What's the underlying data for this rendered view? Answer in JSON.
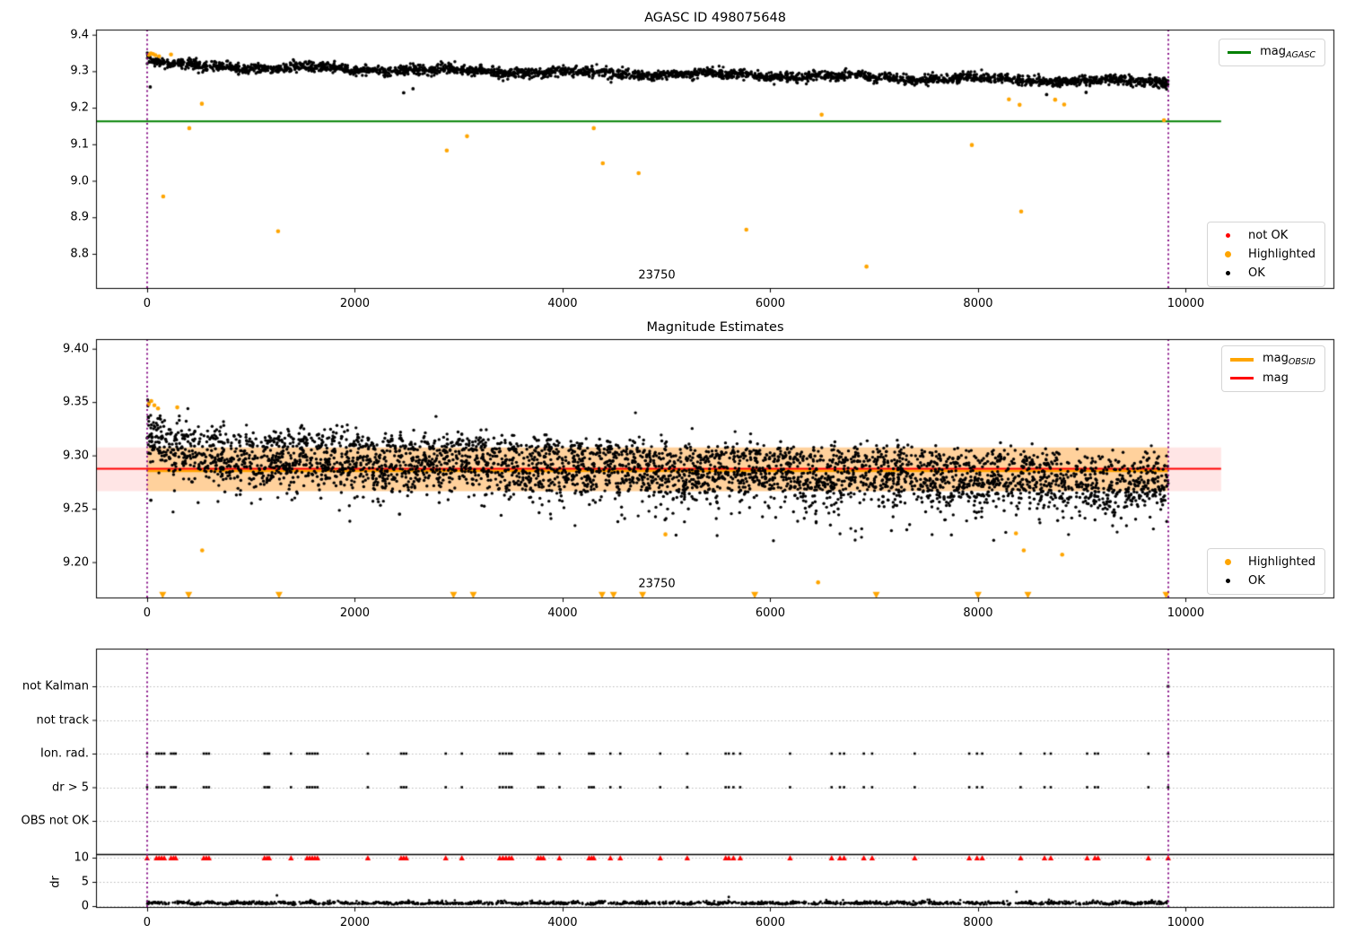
{
  "figure": {
    "bg": "#ffffff"
  },
  "colors": {
    "ok": "#000000",
    "highlighted": "#ffa500",
    "not_ok": "#ff0000",
    "mag_agasc_line": "#008000",
    "mag_line": "#ff0000",
    "mag_obsid_line": "#ffa500",
    "mag_band": "rgba(255,0,0,0.10)",
    "mag_obsid_band": "rgba(255,165,0,0.32)",
    "window_line": "#800080",
    "grid": "#b8b8b8",
    "frame": "#000000"
  },
  "chart_data": [
    {
      "type": "scatter",
      "title": "AGASC ID 498075648",
      "xlim": [
        -492,
        11430
      ],
      "ylim": [
        8.704,
        9.414
      ],
      "xtick_values": [
        0,
        2000,
        4000,
        6000,
        8000,
        10000
      ],
      "xtick_labels": [
        "0",
        "2000",
        "4000",
        "6000",
        "8000",
        "10000"
      ],
      "ytick_values": [
        9.4,
        9.3,
        9.2,
        9.1,
        9.0,
        8.9,
        8.8
      ],
      "ytick_labels": [
        "9.4",
        "9.3",
        "9.2",
        "9.1",
        "9.0",
        "8.9",
        "8.8"
      ],
      "legend_lines": [
        {
          "label": "mag",
          "sub": "AGASC",
          "color": "#008000"
        }
      ],
      "legend_markers": [
        {
          "label": "not OK",
          "color": "#ff0000"
        },
        {
          "label": "Highlighted",
          "color": "#ffa500"
        },
        {
          "label": "OK",
          "color": "#000000"
        }
      ],
      "mag_agasc_value": 9.163,
      "hline_x_span": [
        -492,
        10340
      ],
      "window_x": [
        0,
        9830
      ],
      "ok_series": {
        "n": 3000,
        "seed": 42,
        "x_min": 0,
        "x_max": 9830,
        "y_start": 9.3155,
        "y_slope_per_x": 4.6e-06,
        "noise": 0.0066,
        "transient_amp": 0.02,
        "transient_tau": 110
      },
      "ok_outliers": [
        [
          30,
          9.257
        ],
        [
          2470,
          9.241
        ],
        [
          2560,
          9.252
        ],
        [
          8660,
          9.236
        ],
        [
          9040,
          9.242
        ]
      ],
      "highlighted_points": [
        [
          18,
          9.345
        ],
        [
          36,
          9.349
        ],
        [
          58,
          9.347
        ],
        [
          80,
          9.344
        ],
        [
          115,
          9.341
        ],
        [
          230,
          9.346
        ],
        [
          155,
          8.957
        ],
        [
          406,
          9.144
        ],
        [
          527,
          9.211
        ],
        [
          1261,
          8.862
        ],
        [
          2885,
          9.083
        ],
        [
          3080,
          9.122
        ],
        [
          4300,
          9.144
        ],
        [
          4387,
          9.048
        ],
        [
          4732,
          9.021
        ],
        [
          5769,
          8.866
        ],
        [
          6494,
          9.181
        ],
        [
          6926,
          8.765
        ],
        [
          7940,
          9.098
        ],
        [
          8297,
          9.223
        ],
        [
          8400,
          9.208
        ],
        [
          8415,
          8.916
        ],
        [
          8742,
          9.222
        ],
        [
          8829,
          9.209
        ],
        [
          9790,
          9.166
        ]
      ],
      "annotation": {
        "text": "23750",
        "x": 4905,
        "y": 8.743
      }
    },
    {
      "type": "scatter",
      "title": "Magnitude Estimates",
      "xlim": [
        -492,
        11430
      ],
      "ylim": [
        9.166,
        9.409
      ],
      "xtick_values": [
        0,
        2000,
        4000,
        6000,
        8000,
        10000
      ],
      "xtick_labels": [
        "0",
        "2000",
        "4000",
        "6000",
        "8000",
        "10000"
      ],
      "ytick_values": [
        9.4,
        9.35,
        9.3,
        9.25,
        9.2
      ],
      "ytick_labels": [
        "9.40",
        "9.35",
        "9.30",
        "9.25",
        "9.20"
      ],
      "legend_lines": [
        {
          "label": "mag",
          "sub": "OBSID",
          "color": "#ffa500"
        },
        {
          "label": "mag",
          "sub": "",
          "color": "#ff0000"
        }
      ],
      "legend_markers": [
        {
          "label": "Highlighted",
          "color": "#ffa500"
        },
        {
          "label": "OK",
          "color": "#000000"
        }
      ],
      "mag_value": 9.2875,
      "mag_err_band": [
        9.2665,
        9.3075
      ],
      "obsid_mag_value": 9.2855,
      "hline_x_span": [
        -492,
        10340
      ],
      "window_x": [
        0,
        9830
      ],
      "ok_series": {
        "n": 4200,
        "seed": 7,
        "x_min": 0,
        "x_max": 9830,
        "y_start": 9.2985,
        "y_slope_per_x": 3e-06,
        "noise": 0.0085,
        "transient_amp": 0.022,
        "transient_tau": 130
      },
      "ok_outliers": [
        [
          36,
          9.258
        ],
        [
          2430,
          9.245
        ]
      ],
      "highlighted_points": [
        [
          15,
          9.348
        ],
        [
          40,
          9.351
        ],
        [
          70,
          9.347
        ],
        [
          105,
          9.344
        ],
        [
          290,
          9.345
        ],
        [
          530,
          9.211
        ],
        [
          4990,
          9.226
        ],
        [
          6460,
          9.181
        ],
        [
          8365,
          9.227
        ],
        [
          8440,
          9.211
        ],
        [
          8810,
          9.207
        ]
      ],
      "below_range_x": [
        150,
        400,
        1270,
        2950,
        3140,
        4380,
        4490,
        4770,
        5850,
        7020,
        8000,
        8480,
        9810
      ],
      "annotation": {
        "text": "23750",
        "x": 4905,
        "y": 9.179
      }
    },
    {
      "type": "scatter-flags",
      "rows": [
        "not Kalman",
        "not track",
        "Ion. rad.",
        "dr > 5",
        "OBS not OK"
      ],
      "dr_label": "dr",
      "dr_tick_values": [
        10,
        5,
        0
      ],
      "dr_tick_labels": [
        "10",
        "5",
        "0"
      ],
      "xlim": [
        -492,
        11430
      ],
      "xtick_values": [
        0,
        2000,
        4000,
        6000,
        8000,
        10000
      ],
      "xtick_labels": [
        "0",
        "2000",
        "4000",
        "6000",
        "8000",
        "10000"
      ],
      "window_x": [
        0,
        9830
      ],
      "not_kalman_x": [
        9830
      ],
      "not_track_x": [],
      "obs_not_ok_x": [],
      "flag_clusters_x": [
        0,
        90,
        115,
        140,
        165,
        230,
        255,
        275,
        545,
        570,
        595,
        1130,
        1155,
        1175,
        1385,
        1540,
        1565,
        1590,
        1615,
        1640,
        2125,
        2445,
        2470,
        2495,
        2875,
        3030,
        3395,
        3425,
        3455,
        3485,
        3510,
        3765,
        3790,
        3815,
        3970,
        4255,
        4280,
        4300,
        4460,
        4555,
        4940,
        5200,
        5570,
        5600,
        5645,
        5710,
        6190,
        6590,
        6670,
        6710,
        6900,
        6980,
        7390,
        7915,
        7990,
        8040,
        8410,
        8640,
        8700,
        9050,
        9125,
        9155,
        9640,
        9830
      ],
      "red_dr_clip_value": 10,
      "dr_trace": {
        "n": 1700,
        "seed": 11,
        "x_min": 0,
        "x_max": 9830,
        "base": 0.42,
        "spread": 0.26
      },
      "dr_spikes": [
        [
          1250,
          2.2
        ],
        [
          5600,
          1.9
        ],
        [
          8370,
          2.95
        ]
      ]
    }
  ]
}
